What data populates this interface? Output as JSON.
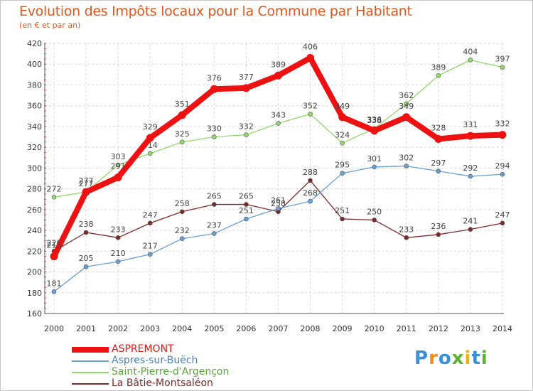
{
  "title": "Evolution des Impôts locaux pour la Commune par Habitant",
  "subtitle": "(en € et par an)",
  "logo": {
    "text": "Proxiti",
    "colors": [
      "#3a8fd6",
      "#f08c1b",
      "#3a8fd6",
      "#5ab52e",
      "#e8b21a",
      "#3a8fd6",
      "#5ab52e"
    ]
  },
  "chart_data": {
    "type": "line",
    "title": "Evolution des Impôts locaux pour la Commune par Habitant",
    "subtitle": "(en € et par an)",
    "xlabel": "",
    "ylabel": "",
    "categories": [
      "2000",
      "2001",
      "2002",
      "2003",
      "2004",
      "2005",
      "2006",
      "2007",
      "2008",
      "2009",
      "2010",
      "2011",
      "2012",
      "2013",
      "2014"
    ],
    "ylim": [
      160,
      420
    ],
    "yticks": [
      160,
      180,
      200,
      220,
      240,
      260,
      280,
      300,
      320,
      340,
      360,
      380,
      400,
      420
    ],
    "grid": true,
    "legend_position": "bottom-left",
    "series": [
      {
        "name": "ASPREMONT",
        "color": "#ee1111",
        "values": [
          215,
          277,
          291,
          329,
          351,
          376,
          377,
          389,
          406,
          349,
          336,
          349,
          328,
          331,
          332
        ],
        "labels": [
          "215",
          "277",
          "291",
          "329",
          "351",
          "376",
          "377",
          "389",
          "406",
          "349",
          "336",
          "349",
          "328",
          "331",
          "332"
        ]
      },
      {
        "name": "Aspres-sur-Buëch",
        "color": "#6a9fd4",
        "values": [
          181,
          205,
          210,
          217,
          232,
          237,
          251,
          261,
          268,
          295,
          301,
          302,
          297,
          292,
          294
        ],
        "labels": [
          "181",
          "205",
          "210",
          "217",
          "232",
          "237",
          "251",
          "261",
          "268",
          "295",
          "301",
          "302",
          "297",
          "292",
          "294"
        ]
      },
      {
        "name": "Saint-Pierre-d'Argençon",
        "color": "#92d86a",
        "values": [
          272,
          277,
          303,
          314,
          325,
          330,
          332,
          343,
          352,
          324,
          338,
          362,
          389,
          404,
          397
        ],
        "labels": [
          "272",
          "277",
          "303",
          "314",
          "325",
          "330",
          "332",
          "343",
          "352",
          "324",
          "338",
          "362",
          "389",
          "404",
          "397"
        ]
      },
      {
        "name": "La Bâtie-Montsaléon",
        "color": "#7a2a2a",
        "values": [
          220,
          238,
          233,
          247,
          258,
          265,
          265,
          258,
          288,
          251,
          250,
          233,
          236,
          241,
          247
        ],
        "labels": [
          "220",
          "238",
          "233",
          "247",
          "258",
          "265",
          "265",
          "258",
          "288",
          "251",
          "250",
          "233",
          "236",
          "241",
          "247"
        ]
      }
    ]
  }
}
